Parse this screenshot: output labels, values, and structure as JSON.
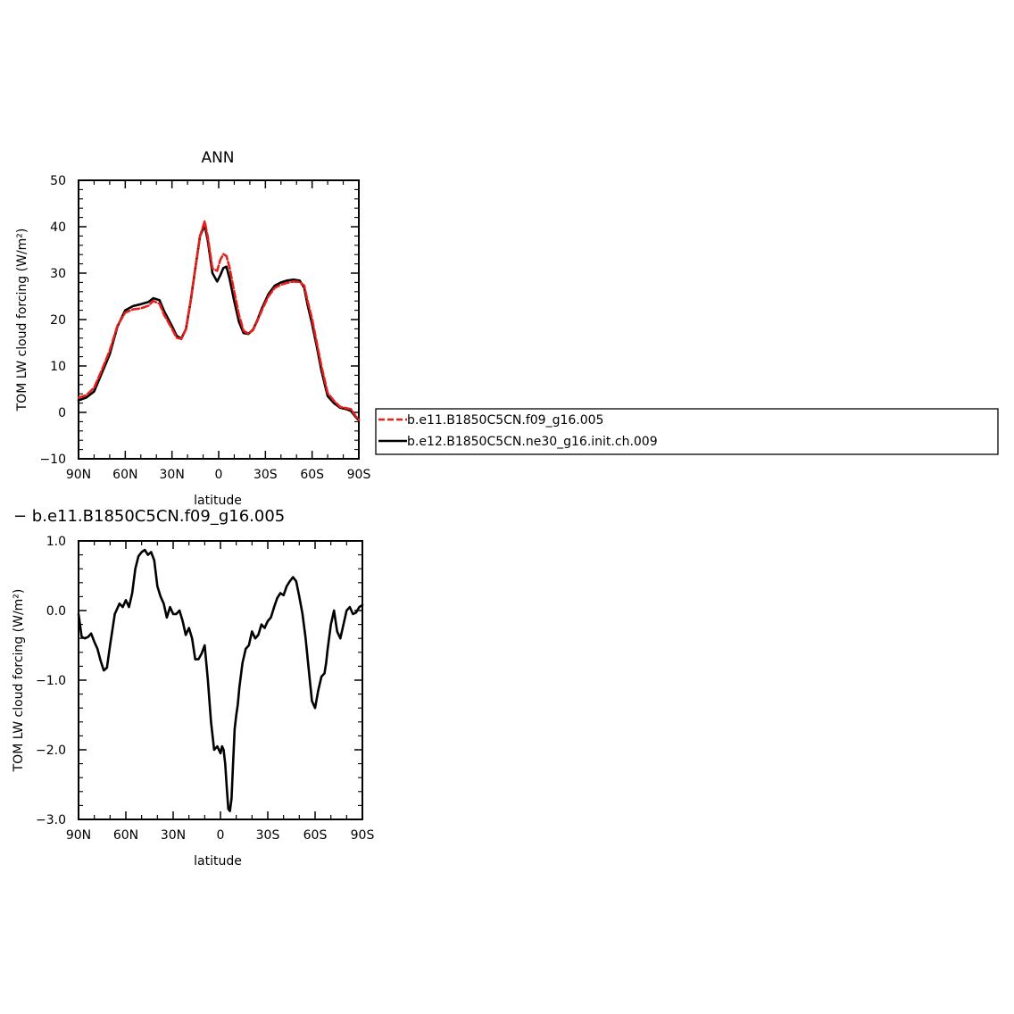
{
  "chart_data": [
    {
      "type": "line",
      "title": "ANN",
      "xlabel": "latitude",
      "ylabel": "TOM LW cloud forcing (W/m²)",
      "xlim": [
        90,
        -90
      ],
      "ylim": [
        -10,
        50
      ],
      "x_ticks": [
        90,
        60,
        30,
        0,
        -30,
        -60,
        -90
      ],
      "x_tick_labels": [
        "90N",
        "60N",
        "30N",
        "0",
        "30S",
        "60S",
        "90S"
      ],
      "y_ticks": [
        -10,
        0,
        10,
        20,
        30,
        40,
        50
      ],
      "y_tick_labels": [
        "−10",
        "0",
        "10",
        "20",
        "30",
        "40",
        "50"
      ],
      "grid": false,
      "legend_position": "right",
      "x": [
        90,
        85,
        80,
        75,
        70,
        65,
        60,
        55,
        50,
        45,
        42,
        38,
        35,
        30,
        27,
        24,
        21,
        18,
        15,
        12,
        9,
        7,
        4,
        1,
        -1,
        -3,
        -5,
        -7,
        -10,
        -13,
        -16,
        -19,
        -22,
        -25,
        -28,
        -32,
        -36,
        -40,
        -44,
        -48,
        -52,
        -55,
        -57,
        -60,
        -63,
        -66,
        -70,
        -74,
        -78,
        -82,
        -85,
        -88,
        -90
      ],
      "series": [
        {
          "name": "b.e11.B1850C5CN.f09_g16.005",
          "color": "#e8201c",
          "dash": true,
          "values": [
            3.2,
            3.7,
            5.3,
            9.2,
            13.3,
            18.7,
            21.5,
            22.2,
            22.4,
            23.0,
            24.0,
            23.4,
            21.0,
            18.0,
            16.1,
            15.8,
            18.0,
            24.0,
            31.0,
            38.0,
            41.2,
            37.8,
            31.0,
            30.5,
            32.8,
            34.1,
            33.7,
            31.2,
            26.0,
            21.0,
            17.6,
            17.0,
            17.7,
            19.8,
            22.2,
            25.0,
            26.8,
            27.5,
            27.9,
            28.2,
            28.1,
            27.3,
            24.2,
            20.1,
            15.0,
            10.0,
            4.2,
            2.5,
            1.2,
            0.9,
            0.7,
            -0.8,
            -1.6
          ]
        },
        {
          "name": "b.e12.B1850C5CN.ne30_g16.init.ch.009",
          "color": "#000000",
          "dash": false,
          "values": [
            2.6,
            3.2,
            4.5,
            8.5,
            12.5,
            18.5,
            22.0,
            22.9,
            23.3,
            23.8,
            24.6,
            24.2,
            21.8,
            18.6,
            16.5,
            15.9,
            18.0,
            24.0,
            31.0,
            38.0,
            40.3,
            37.0,
            30.0,
            28.2,
            29.5,
            31.1,
            31.4,
            28.8,
            24.0,
            19.5,
            17.1,
            16.9,
            17.8,
            20.0,
            22.6,
            25.5,
            27.3,
            28.0,
            28.4,
            28.6,
            28.4,
            26.8,
            23.3,
            19.0,
            14.2,
            9.0,
            3.5,
            2.0,
            1.0,
            0.7,
            0.3,
            -1.0,
            -1.7
          ]
        }
      ]
    },
    {
      "type": "line",
      "title": "− b.e11.B1850C5CN.f09_g16.005",
      "xlabel": "latitude",
      "ylabel": "TOM LW cloud forcing (W/m²)",
      "xlim": [
        90,
        -90
      ],
      "ylim": [
        -3.0,
        1.0
      ],
      "x_ticks": [
        90,
        60,
        30,
        0,
        -30,
        -60,
        -90
      ],
      "x_tick_labels": [
        "90N",
        "60N",
        "30N",
        "0",
        "30S",
        "60S",
        "90S"
      ],
      "y_ticks": [
        -3.0,
        -2.0,
        -1.0,
        0.0,
        1.0
      ],
      "y_tick_labels": [
        "−3.0",
        "−2.0",
        "−1.0",
        "0.0",
        "1.0"
      ],
      "grid": false,
      "x": [
        90,
        88,
        86,
        84,
        82,
        80,
        78,
        76,
        74,
        72,
        70,
        67,
        64,
        62,
        60,
        58,
        56,
        54,
        52,
        50,
        48,
        46,
        44,
        42,
        40,
        38,
        36,
        34,
        32,
        30,
        28,
        26,
        24,
        22,
        20,
        18,
        16,
        14,
        12,
        10,
        8,
        6,
        4,
        2,
        0,
        -1,
        -2,
        -3,
        -4,
        -5,
        -6,
        -7,
        -8,
        -9,
        -10,
        -11,
        -12,
        -14,
        -16,
        -18,
        -20,
        -22,
        -24,
        -26,
        -28,
        -30,
        -32,
        -34,
        -36,
        -38,
        -40,
        -42,
        -44,
        -46,
        -48,
        -50,
        -52,
        -54,
        -56,
        -58,
        -60,
        -62,
        -64,
        -66,
        -67,
        -68,
        -70,
        -72,
        -74,
        -76,
        -78,
        -80,
        -82,
        -84,
        -86,
        -88,
        -90
      ],
      "series": [
        {
          "name": "",
          "color": "#000000",
          "dash": false,
          "values": [
            -0.05,
            -0.38,
            -0.4,
            -0.38,
            -0.33,
            -0.45,
            -0.55,
            -0.72,
            -0.86,
            -0.82,
            -0.5,
            -0.05,
            0.1,
            0.05,
            0.15,
            0.05,
            0.25,
            0.6,
            0.78,
            0.84,
            0.87,
            0.8,
            0.84,
            0.72,
            0.35,
            0.2,
            0.1,
            -0.1,
            0.05,
            -0.05,
            -0.05,
            0.0,
            -0.15,
            -0.35,
            -0.25,
            -0.4,
            -0.7,
            -0.7,
            -0.62,
            -0.5,
            -1.0,
            -1.6,
            -2.0,
            -1.95,
            -2.05,
            -1.95,
            -2.0,
            -2.2,
            -2.55,
            -2.85,
            -2.88,
            -2.7,
            -2.2,
            -1.7,
            -1.5,
            -1.35,
            -1.1,
            -0.75,
            -0.55,
            -0.5,
            -0.3,
            -0.4,
            -0.35,
            -0.2,
            -0.25,
            -0.15,
            -0.1,
            0.05,
            0.18,
            0.25,
            0.22,
            0.35,
            0.42,
            0.48,
            0.42,
            0.2,
            -0.05,
            -0.4,
            -0.85,
            -1.3,
            -1.4,
            -1.15,
            -0.95,
            -0.9,
            -0.75,
            -0.55,
            -0.2,
            0.0,
            -0.3,
            -0.4,
            -0.2,
            0.0,
            0.05,
            -0.05,
            -0.03,
            0.05,
            0.08
          ]
        }
      ]
    }
  ]
}
